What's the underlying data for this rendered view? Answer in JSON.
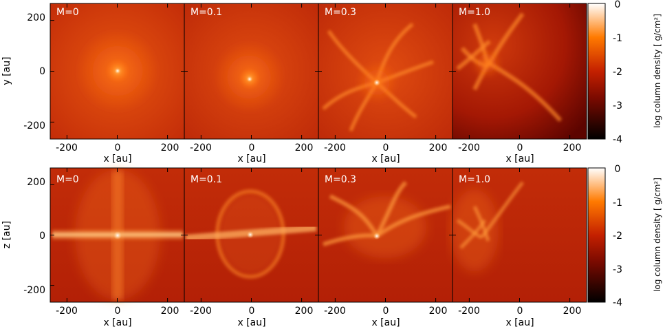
{
  "rows": [
    {
      "ylabel": "y [au]",
      "panels": [
        {
          "label": "M=0",
          "morphology": "isolated core"
        },
        {
          "label": "M=0.1",
          "morphology": "isolated core"
        },
        {
          "label": "M=0.3",
          "morphology": "filamentary"
        },
        {
          "label": "M=1.0",
          "morphology": "turbulent filaments"
        }
      ]
    },
    {
      "ylabel": "z [au]",
      "panels": [
        {
          "label": "M=0",
          "morphology": "disk with outflow lobes"
        },
        {
          "label": "M=0.1",
          "morphology": "disk with bubble"
        },
        {
          "label": "M=0.3",
          "morphology": "warped disk"
        },
        {
          "label": "M=1.0",
          "morphology": "turbulent"
        }
      ]
    }
  ],
  "xlabel": "x [au]",
  "xticks": [
    "-200",
    "0",
    "200"
  ],
  "yticks": [
    "200",
    "0",
    "-200"
  ],
  "colorbar": {
    "label": "log column density [ g/cm²]",
    "ticks": [
      "0",
      "-1",
      "-2",
      "-3",
      "-4"
    ],
    "colormap": [
      "#000000",
      "#7a0a00",
      "#c42000",
      "#ff7a00",
      "#ffffff"
    ]
  }
}
